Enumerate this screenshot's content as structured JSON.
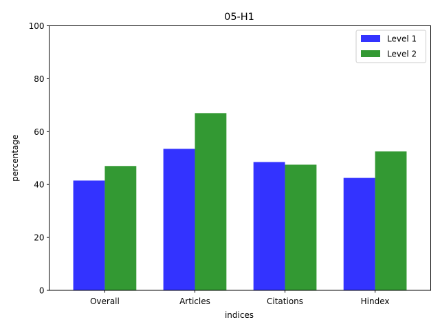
{
  "chart_data": {
    "type": "bar",
    "title": "05-H1",
    "xlabel": "indices",
    "ylabel": "percentage",
    "categories": [
      "Overall",
      "Articles",
      "Citations",
      "Hindex"
    ],
    "ylim": [
      0,
      100
    ],
    "yticks": [
      0,
      20,
      40,
      60,
      80,
      100
    ],
    "grid": false,
    "legend_position": "top-right",
    "series": [
      {
        "name": "Level 1",
        "color": "#3333ff",
        "values": [
          41.5,
          53.5,
          48.5,
          42.5
        ]
      },
      {
        "name": "Level 2",
        "color": "#339933",
        "values": [
          47.0,
          67.0,
          47.5,
          52.5
        ]
      }
    ]
  }
}
